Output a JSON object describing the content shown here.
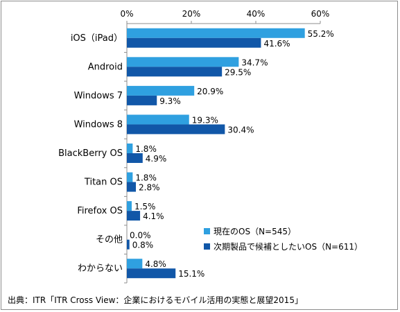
{
  "chart_data": {
    "type": "bar",
    "orientation": "horizontal",
    "categories": [
      "iOS（iPad）",
      "Android",
      "Windows 7",
      "Windows 8",
      "BlackBerry OS",
      "Titan OS",
      "Firefox OS",
      "その他",
      "わからない"
    ],
    "series": [
      {
        "name": "現在のOS（N=545）",
        "values": [
          55.2,
          34.7,
          20.9,
          19.3,
          1.8,
          1.8,
          1.5,
          0.0,
          4.8
        ],
        "color": "#2fa0e0"
      },
      {
        "name": "次期製品で候補としたいOS（N=611）",
        "values": [
          41.6,
          29.5,
          9.3,
          30.4,
          4.9,
          2.8,
          4.1,
          0.8,
          15.1
        ],
        "color": "#1157a8"
      }
    ],
    "value_labels": [
      [
        "55.2%",
        "34.7%",
        "20.9%",
        "19.3%",
        "1.8%",
        "1.8%",
        "1.5%",
        "0.0%",
        "4.8%"
      ],
      [
        "41.6%",
        "29.5%",
        "9.3%",
        "30.4%",
        "4.9%",
        "2.8%",
        "4.1%",
        "0.8%",
        "15.1%"
      ]
    ],
    "xlim": [
      0,
      60
    ],
    "xticks": [
      0,
      20,
      40,
      60
    ],
    "xtick_labels": [
      "0%",
      "20%",
      "40%",
      "60%"
    ],
    "grid": false,
    "legend_position": "bottom-right",
    "source": "出典：ITR「ITR Cross View：企業におけるモバイル活用の実態と展望2015」"
  }
}
